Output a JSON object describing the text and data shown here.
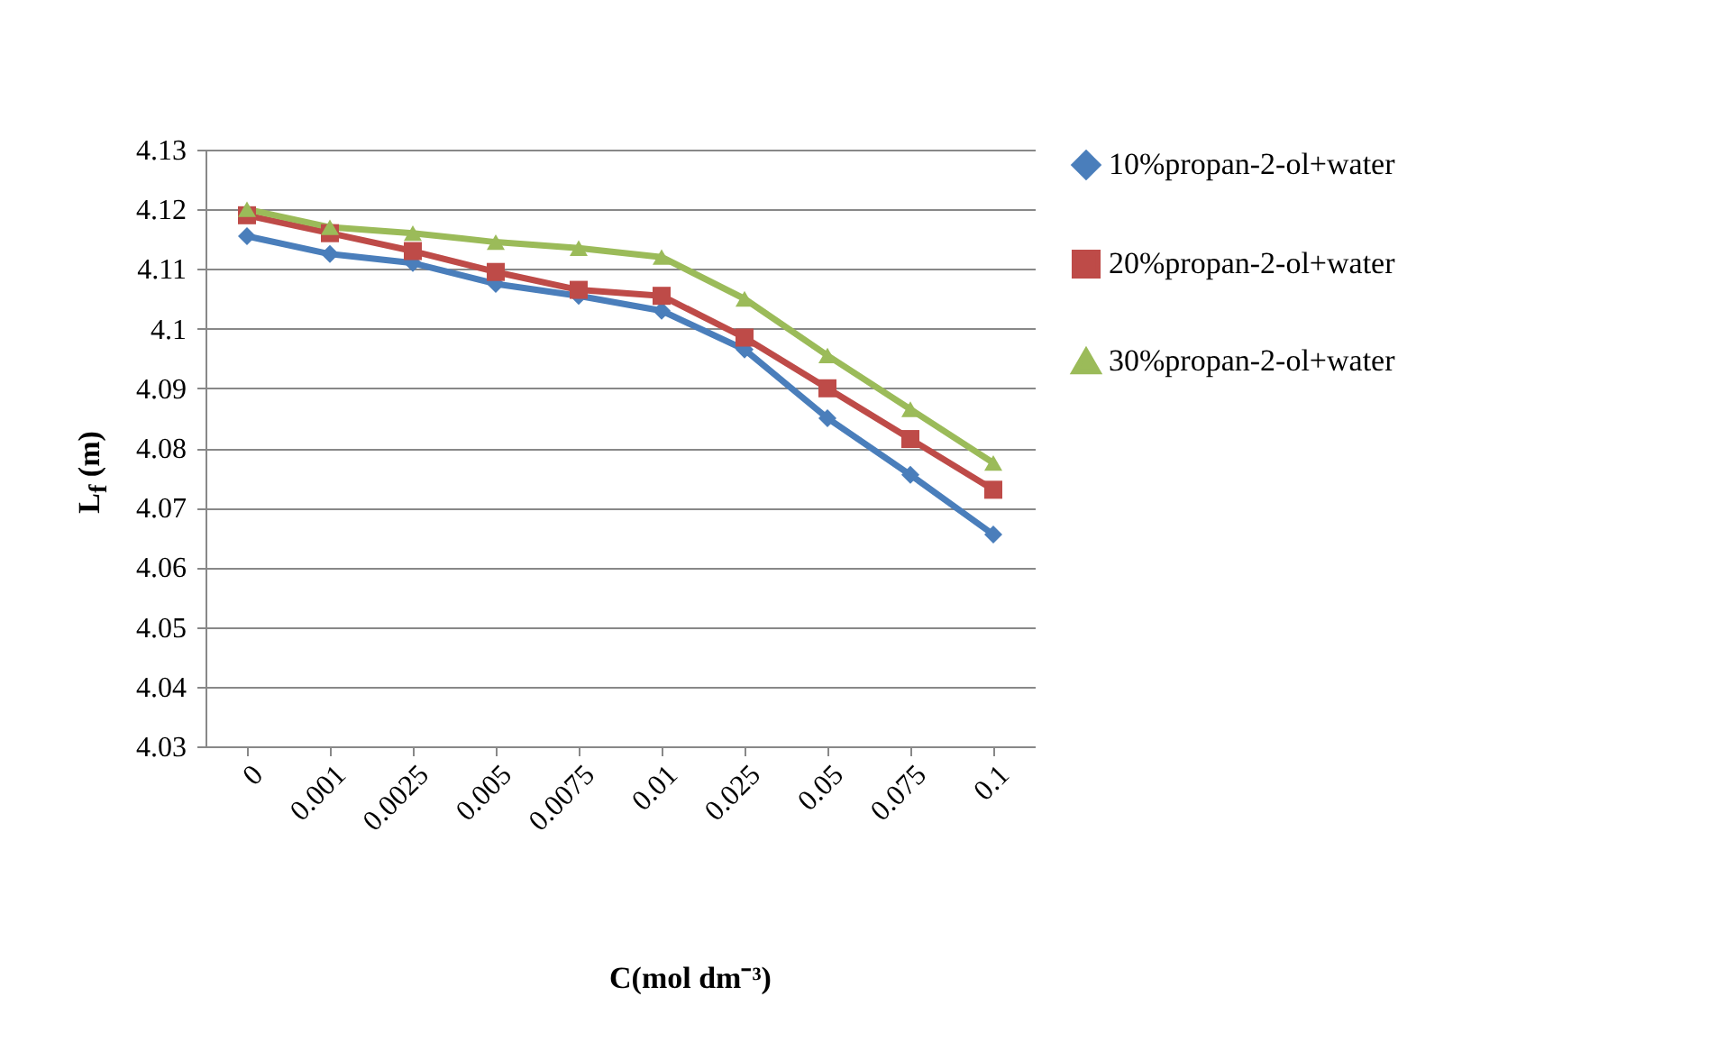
{
  "chart_data": {
    "type": "line",
    "xlabel": "C(mol dm⁻³)",
    "ylabel": "L$_{f}$ (m)",
    "categories": [
      "0",
      "0.001",
      "0.0025",
      "0.005",
      "0.0075",
      "0.01",
      "0.025",
      "0.05",
      "0.075",
      "0.1"
    ],
    "series": [
      {
        "name": "10%propan-2-ol+water",
        "color": "#4a7ebb",
        "marker": "diamond",
        "values": [
          4.1155,
          4.1125,
          4.111,
          4.1075,
          4.1055,
          4.103,
          4.0965,
          4.085,
          4.0755,
          4.0655
        ]
      },
      {
        "name": "20%propan-2-ol+water",
        "color": "#be4b48",
        "marker": "square",
        "values": [
          4.119,
          4.116,
          4.113,
          4.1095,
          4.1065,
          4.1055,
          4.0985,
          4.09,
          4.0815,
          4.073
        ]
      },
      {
        "name": "30%propan-2-ol+water",
        "color": "#9bbb59",
        "marker": "triangle",
        "values": [
          4.12,
          4.117,
          4.116,
          4.1145,
          4.1135,
          4.112,
          4.105,
          4.0955,
          4.0865,
          4.0775
        ]
      }
    ],
    "ylim": [
      4.03,
      4.13
    ],
    "yticks": [
      4.03,
      4.04,
      4.05,
      4.06,
      4.07,
      4.08,
      4.09,
      4.1,
      4.11,
      4.12,
      4.13
    ],
    "grid": "y",
    "legend": "right"
  }
}
